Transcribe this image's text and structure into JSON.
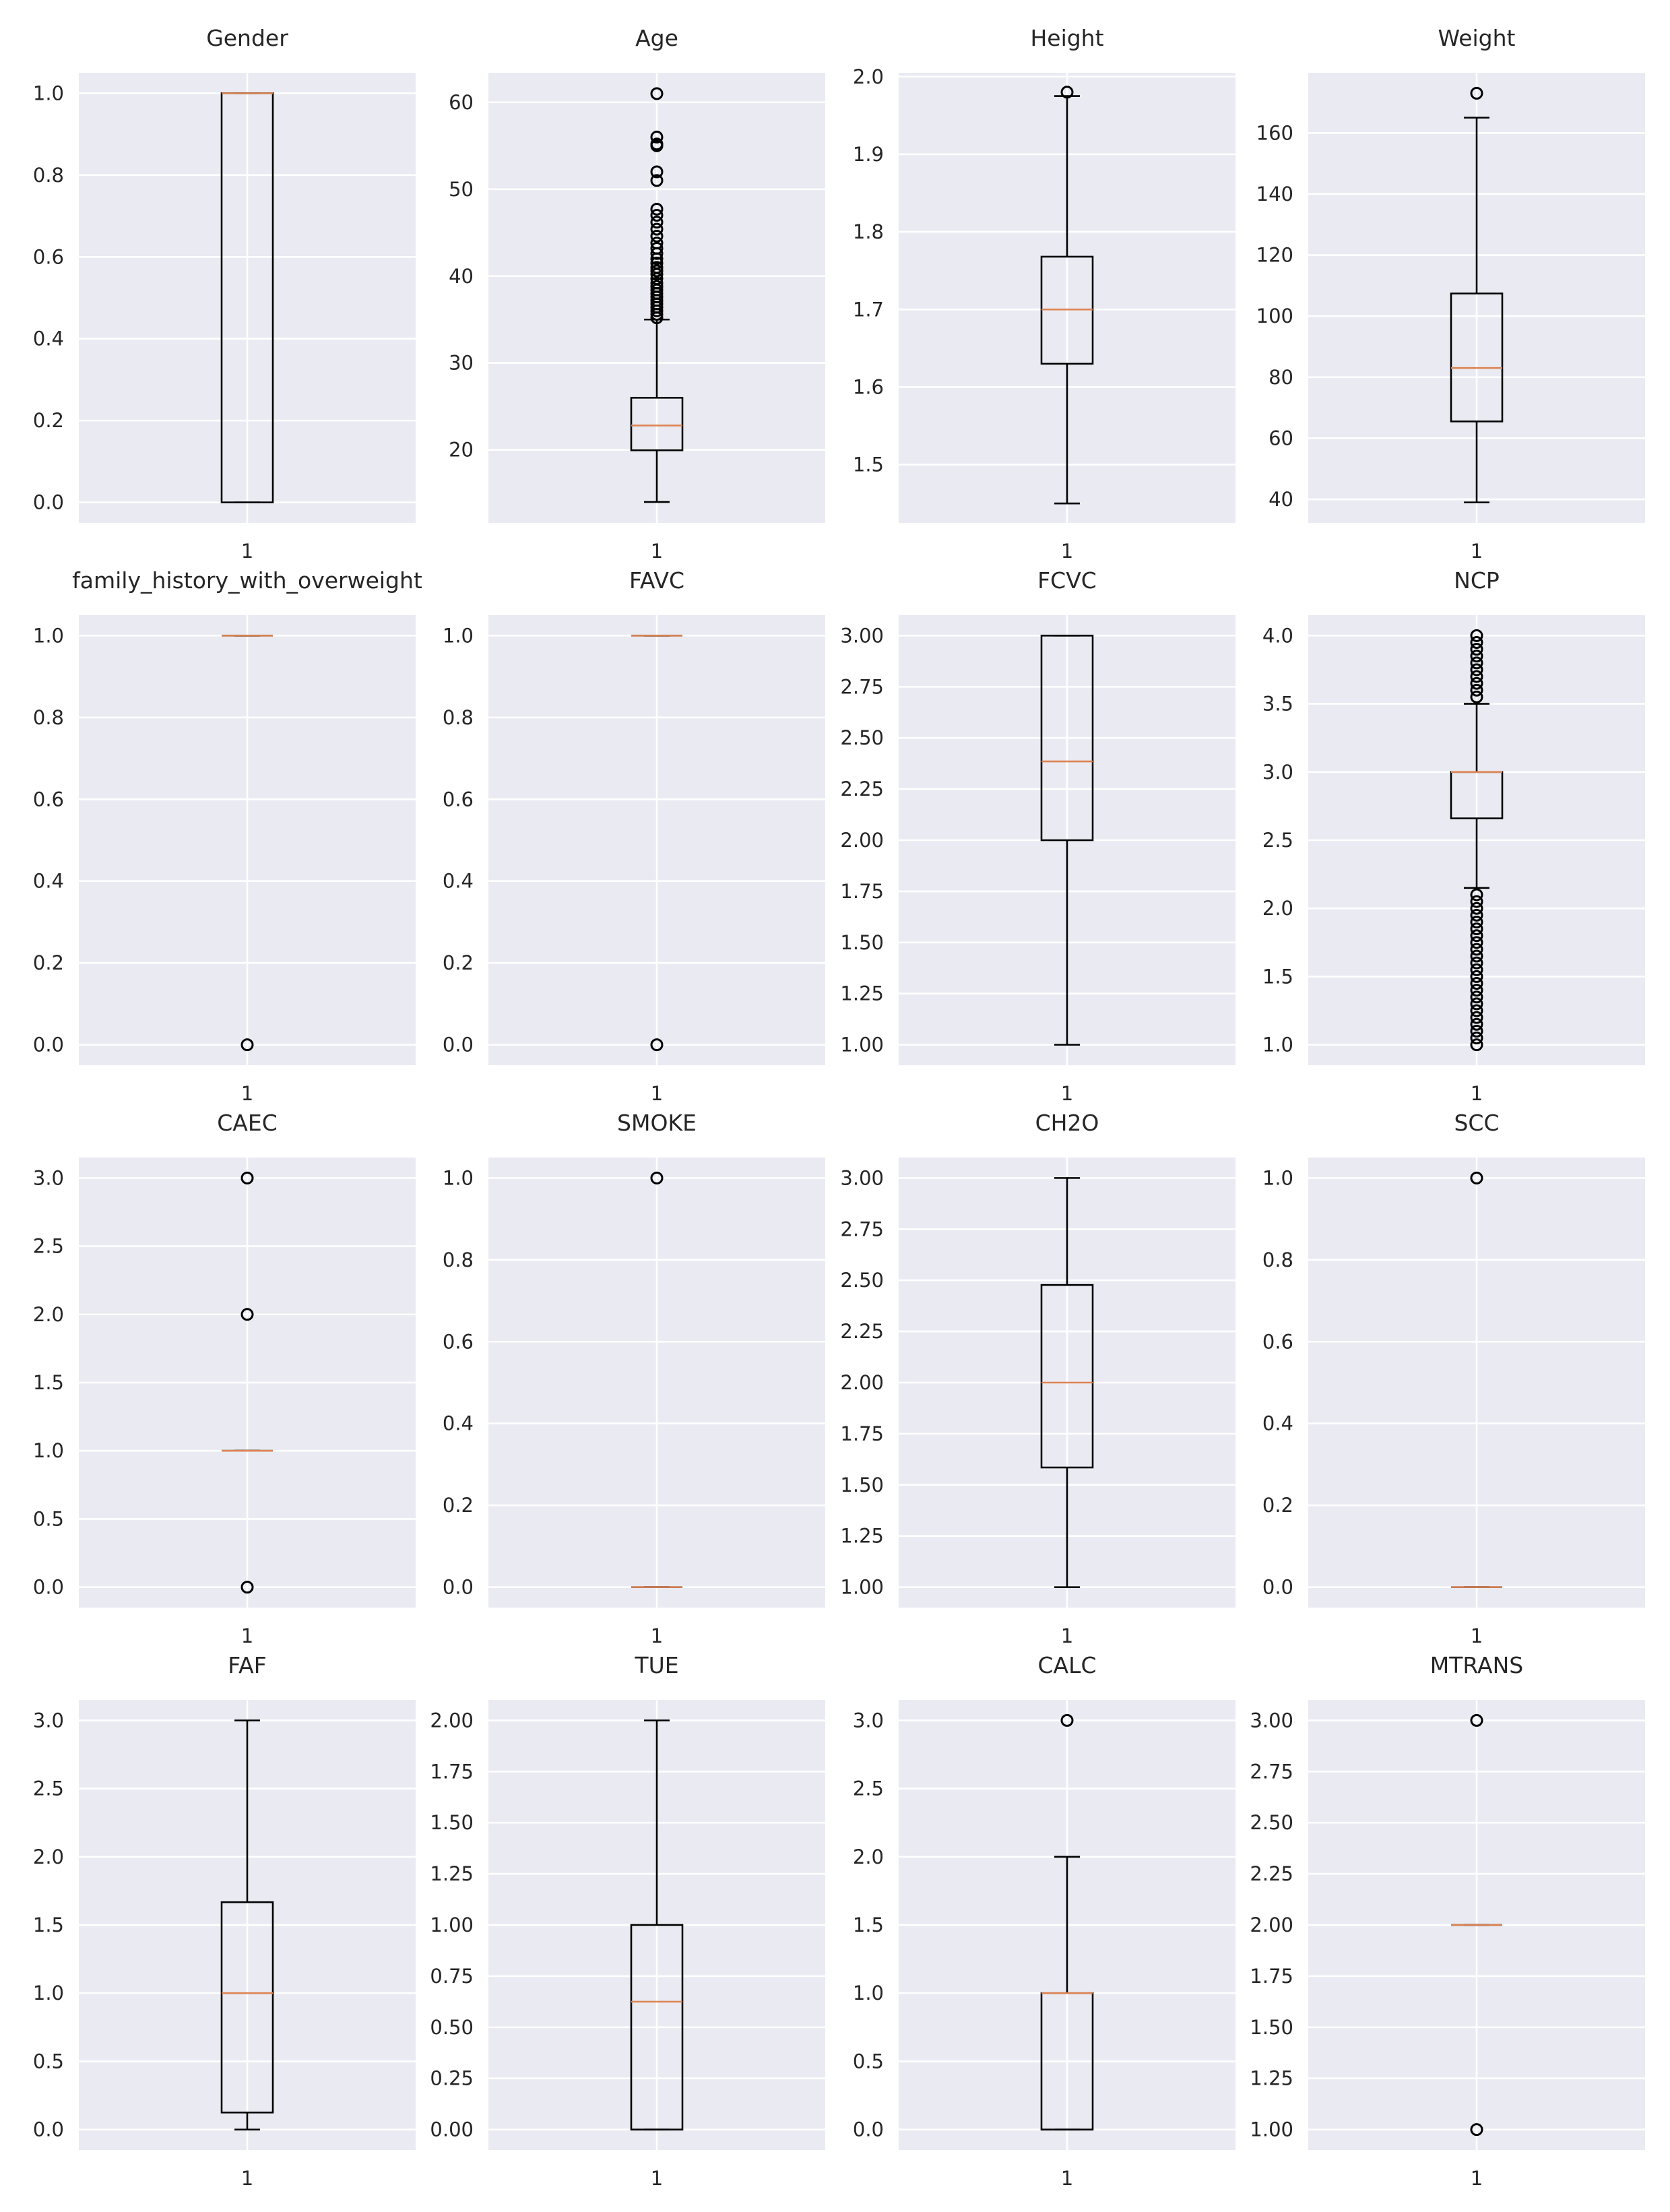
{
  "chart_data": [
    {
      "type": "box",
      "title": "Gender",
      "categories": [
        "1"
      ],
      "yticks": [
        0.0,
        0.2,
        0.4,
        0.6,
        0.8,
        1.0
      ],
      "ytick_labels": [
        "0.0",
        "0.2",
        "0.4",
        "0.6",
        "0.8",
        "1.0"
      ],
      "ylim": [
        -0.05,
        1.05
      ],
      "box": {
        "whisker_low": 0,
        "q1": 0,
        "median": 1,
        "q3": 1,
        "whisker_high": 1
      },
      "outliers": []
    },
    {
      "type": "box",
      "title": "Age",
      "categories": [
        "1"
      ],
      "yticks": [
        20,
        30,
        40,
        50,
        60
      ],
      "ytick_labels": [
        "20",
        "30",
        "40",
        "50",
        "60"
      ],
      "ylim": [
        11.6,
        63.4
      ],
      "box": {
        "whisker_low": 14,
        "q1": 19.95,
        "median": 22.8,
        "q3": 26.0,
        "whisker_high": 35
      },
      "outliers": [
        35.2,
        35.6,
        36,
        36.4,
        36.8,
        37.2,
        37.6,
        38,
        38.4,
        38.8,
        39.2,
        39.7,
        40.2,
        40.6,
        41,
        41.5,
        42,
        42.6,
        43.2,
        43.8,
        44.6,
        45.4,
        46.2,
        47,
        47.7,
        51,
        52,
        55,
        55.2,
        56,
        61
      ]
    },
    {
      "type": "box",
      "title": "Height",
      "categories": [
        "1"
      ],
      "yticks": [
        1.5,
        1.6,
        1.7,
        1.8,
        1.9,
        2.0
      ],
      "ytick_labels": [
        "1.5",
        "1.6",
        "1.7",
        "1.8",
        "1.9",
        "2.0"
      ],
      "ylim": [
        1.425,
        2.005
      ],
      "box": {
        "whisker_low": 1.45,
        "q1": 1.63,
        "median": 1.7,
        "q3": 1.768,
        "whisker_high": 1.975
      },
      "outliers": [
        1.98
      ]
    },
    {
      "type": "box",
      "title": "Weight",
      "categories": [
        "1"
      ],
      "yticks": [
        40,
        60,
        80,
        100,
        120,
        140,
        160
      ],
      "ytick_labels": [
        "40",
        "60",
        "80",
        "100",
        "120",
        "140",
        "160"
      ],
      "ylim": [
        32.3,
        179.7
      ],
      "box": {
        "whisker_low": 39,
        "q1": 65.5,
        "median": 83,
        "q3": 107.4,
        "whisker_high": 165
      },
      "outliers": [
        173
      ]
    },
    {
      "type": "box",
      "title": "family_history_with_overweight",
      "categories": [
        "1"
      ],
      "yticks": [
        0.0,
        0.2,
        0.4,
        0.6,
        0.8,
        1.0
      ],
      "ytick_labels": [
        "0.0",
        "0.2",
        "0.4",
        "0.6",
        "0.8",
        "1.0"
      ],
      "ylim": [
        -0.05,
        1.05
      ],
      "box": {
        "whisker_low": 1,
        "q1": 1,
        "median": 1,
        "q3": 1,
        "whisker_high": 1
      },
      "outliers": [
        0
      ]
    },
    {
      "type": "box",
      "title": "FAVC",
      "categories": [
        "1"
      ],
      "yticks": [
        0.0,
        0.2,
        0.4,
        0.6,
        0.8,
        1.0
      ],
      "ytick_labels": [
        "0.0",
        "0.2",
        "0.4",
        "0.6",
        "0.8",
        "1.0"
      ],
      "ylim": [
        -0.05,
        1.05
      ],
      "box": {
        "whisker_low": 1,
        "q1": 1,
        "median": 1,
        "q3": 1,
        "whisker_high": 1
      },
      "outliers": [
        0
      ]
    },
    {
      "type": "box",
      "title": "FCVC",
      "categories": [
        "1"
      ],
      "yticks": [
        1.0,
        1.25,
        1.5,
        1.75,
        2.0,
        2.25,
        2.5,
        2.75,
        3.0
      ],
      "ytick_labels": [
        "1.00",
        "1.25",
        "1.50",
        "1.75",
        "2.00",
        "2.25",
        "2.50",
        "2.75",
        "3.00"
      ],
      "ylim": [
        0.9,
        3.1
      ],
      "box": {
        "whisker_low": 1,
        "q1": 2,
        "median": 2.385,
        "q3": 3,
        "whisker_high": 3
      },
      "outliers": []
    },
    {
      "type": "box",
      "title": "NCP",
      "categories": [
        "1"
      ],
      "yticks": [
        1.0,
        1.5,
        2.0,
        2.5,
        3.0,
        3.5,
        4.0
      ],
      "ytick_labels": [
        "1.0",
        "1.5",
        "2.0",
        "2.5",
        "3.0",
        "3.5",
        "4.0"
      ],
      "ylim": [
        0.85,
        4.15
      ],
      "box": {
        "whisker_low": 2.15,
        "q1": 2.66,
        "median": 3,
        "q3": 3,
        "whisker_high": 3.5
      },
      "outliers": [
        1,
        1.05,
        1.1,
        1.15,
        1.2,
        1.25,
        1.3,
        1.35,
        1.4,
        1.45,
        1.5,
        1.55,
        1.6,
        1.65,
        1.7,
        1.75,
        1.8,
        1.85,
        1.9,
        1.95,
        2,
        2.05,
        2.1,
        3.55,
        3.6,
        3.65,
        3.7,
        3.75,
        3.8,
        3.85,
        3.9,
        3.95,
        4
      ]
    },
    {
      "type": "box",
      "title": "CAEC",
      "categories": [
        "1"
      ],
      "yticks": [
        0.0,
        0.5,
        1.0,
        1.5,
        2.0,
        2.5,
        3.0
      ],
      "ytick_labels": [
        "0.0",
        "0.5",
        "1.0",
        "1.5",
        "2.0",
        "2.5",
        "3.0"
      ],
      "ylim": [
        -0.15,
        3.15
      ],
      "box": {
        "whisker_low": 1,
        "q1": 1,
        "median": 1,
        "q3": 1,
        "whisker_high": 1
      },
      "outliers": [
        0,
        2,
        3
      ]
    },
    {
      "type": "box",
      "title": "SMOKE",
      "categories": [
        "1"
      ],
      "yticks": [
        0.0,
        0.2,
        0.4,
        0.6,
        0.8,
        1.0
      ],
      "ytick_labels": [
        "0.0",
        "0.2",
        "0.4",
        "0.6",
        "0.8",
        "1.0"
      ],
      "ylim": [
        -0.05,
        1.05
      ],
      "box": {
        "whisker_low": 0,
        "q1": 0,
        "median": 0,
        "q3": 0,
        "whisker_high": 0
      },
      "outliers": [
        1
      ]
    },
    {
      "type": "box",
      "title": "CH2O",
      "categories": [
        "1"
      ],
      "yticks": [
        1.0,
        1.25,
        1.5,
        1.75,
        2.0,
        2.25,
        2.5,
        2.75,
        3.0
      ],
      "ytick_labels": [
        "1.00",
        "1.25",
        "1.50",
        "1.75",
        "2.00",
        "2.25",
        "2.50",
        "2.75",
        "3.00"
      ],
      "ylim": [
        0.9,
        3.1
      ],
      "box": {
        "whisker_low": 1,
        "q1": 1.585,
        "median": 2,
        "q3": 2.477,
        "whisker_high": 3
      },
      "outliers": []
    },
    {
      "type": "box",
      "title": "SCC",
      "categories": [
        "1"
      ],
      "yticks": [
        0.0,
        0.2,
        0.4,
        0.6,
        0.8,
        1.0
      ],
      "ytick_labels": [
        "0.0",
        "0.2",
        "0.4",
        "0.6",
        "0.8",
        "1.0"
      ],
      "ylim": [
        -0.05,
        1.05
      ],
      "box": {
        "whisker_low": 0,
        "q1": 0,
        "median": 0,
        "q3": 0,
        "whisker_high": 0
      },
      "outliers": [
        1
      ]
    },
    {
      "type": "box",
      "title": "FAF",
      "categories": [
        "1"
      ],
      "yticks": [
        0.0,
        0.5,
        1.0,
        1.5,
        2.0,
        2.5,
        3.0
      ],
      "ytick_labels": [
        "0.0",
        "0.5",
        "1.0",
        "1.5",
        "2.0",
        "2.5",
        "3.0"
      ],
      "ylim": [
        -0.15,
        3.15
      ],
      "box": {
        "whisker_low": 0,
        "q1": 0.125,
        "median": 1,
        "q3": 1.667,
        "whisker_high": 3
      },
      "outliers": []
    },
    {
      "type": "box",
      "title": "TUE",
      "categories": [
        "1"
      ],
      "yticks": [
        0.0,
        0.25,
        0.5,
        0.75,
        1.0,
        1.25,
        1.5,
        1.75,
        2.0
      ],
      "ytick_labels": [
        "0.00",
        "0.25",
        "0.50",
        "0.75",
        "1.00",
        "1.25",
        "1.50",
        "1.75",
        "2.00"
      ],
      "ylim": [
        -0.1,
        2.1
      ],
      "box": {
        "whisker_low": 0,
        "q1": 0,
        "median": 0.625,
        "q3": 1,
        "whisker_high": 2
      },
      "outliers": []
    },
    {
      "type": "box",
      "title": "CALC",
      "categories": [
        "1"
      ],
      "yticks": [
        0.0,
        0.5,
        1.0,
        1.5,
        2.0,
        2.5,
        3.0
      ],
      "ytick_labels": [
        "0.0",
        "0.5",
        "1.0",
        "1.5",
        "2.0",
        "2.5",
        "3.0"
      ],
      "ylim": [
        -0.15,
        3.15
      ],
      "box": {
        "whisker_low": 0,
        "q1": 0,
        "median": 1,
        "q3": 1,
        "whisker_high": 2
      },
      "outliers": [
        3
      ]
    },
    {
      "type": "box",
      "title": "MTRANS",
      "categories": [
        "1"
      ],
      "yticks": [
        1.0,
        1.25,
        1.5,
        1.75,
        2.0,
        2.25,
        2.5,
        2.75,
        3.0
      ],
      "ytick_labels": [
        "1.00",
        "1.25",
        "1.50",
        "1.75",
        "2.00",
        "2.25",
        "2.50",
        "2.75",
        "3.00"
      ],
      "ylim": [
        0.9,
        3.1
      ],
      "box": {
        "whisker_low": 2,
        "q1": 2,
        "median": 2,
        "q3": 2,
        "whisker_high": 2
      },
      "outliers": [
        1,
        3
      ]
    }
  ],
  "colors": {
    "panel_background": "#eaeaf2",
    "grid": "#ffffff",
    "box": "#000000",
    "median": "#dd8452",
    "text": "#262626"
  }
}
